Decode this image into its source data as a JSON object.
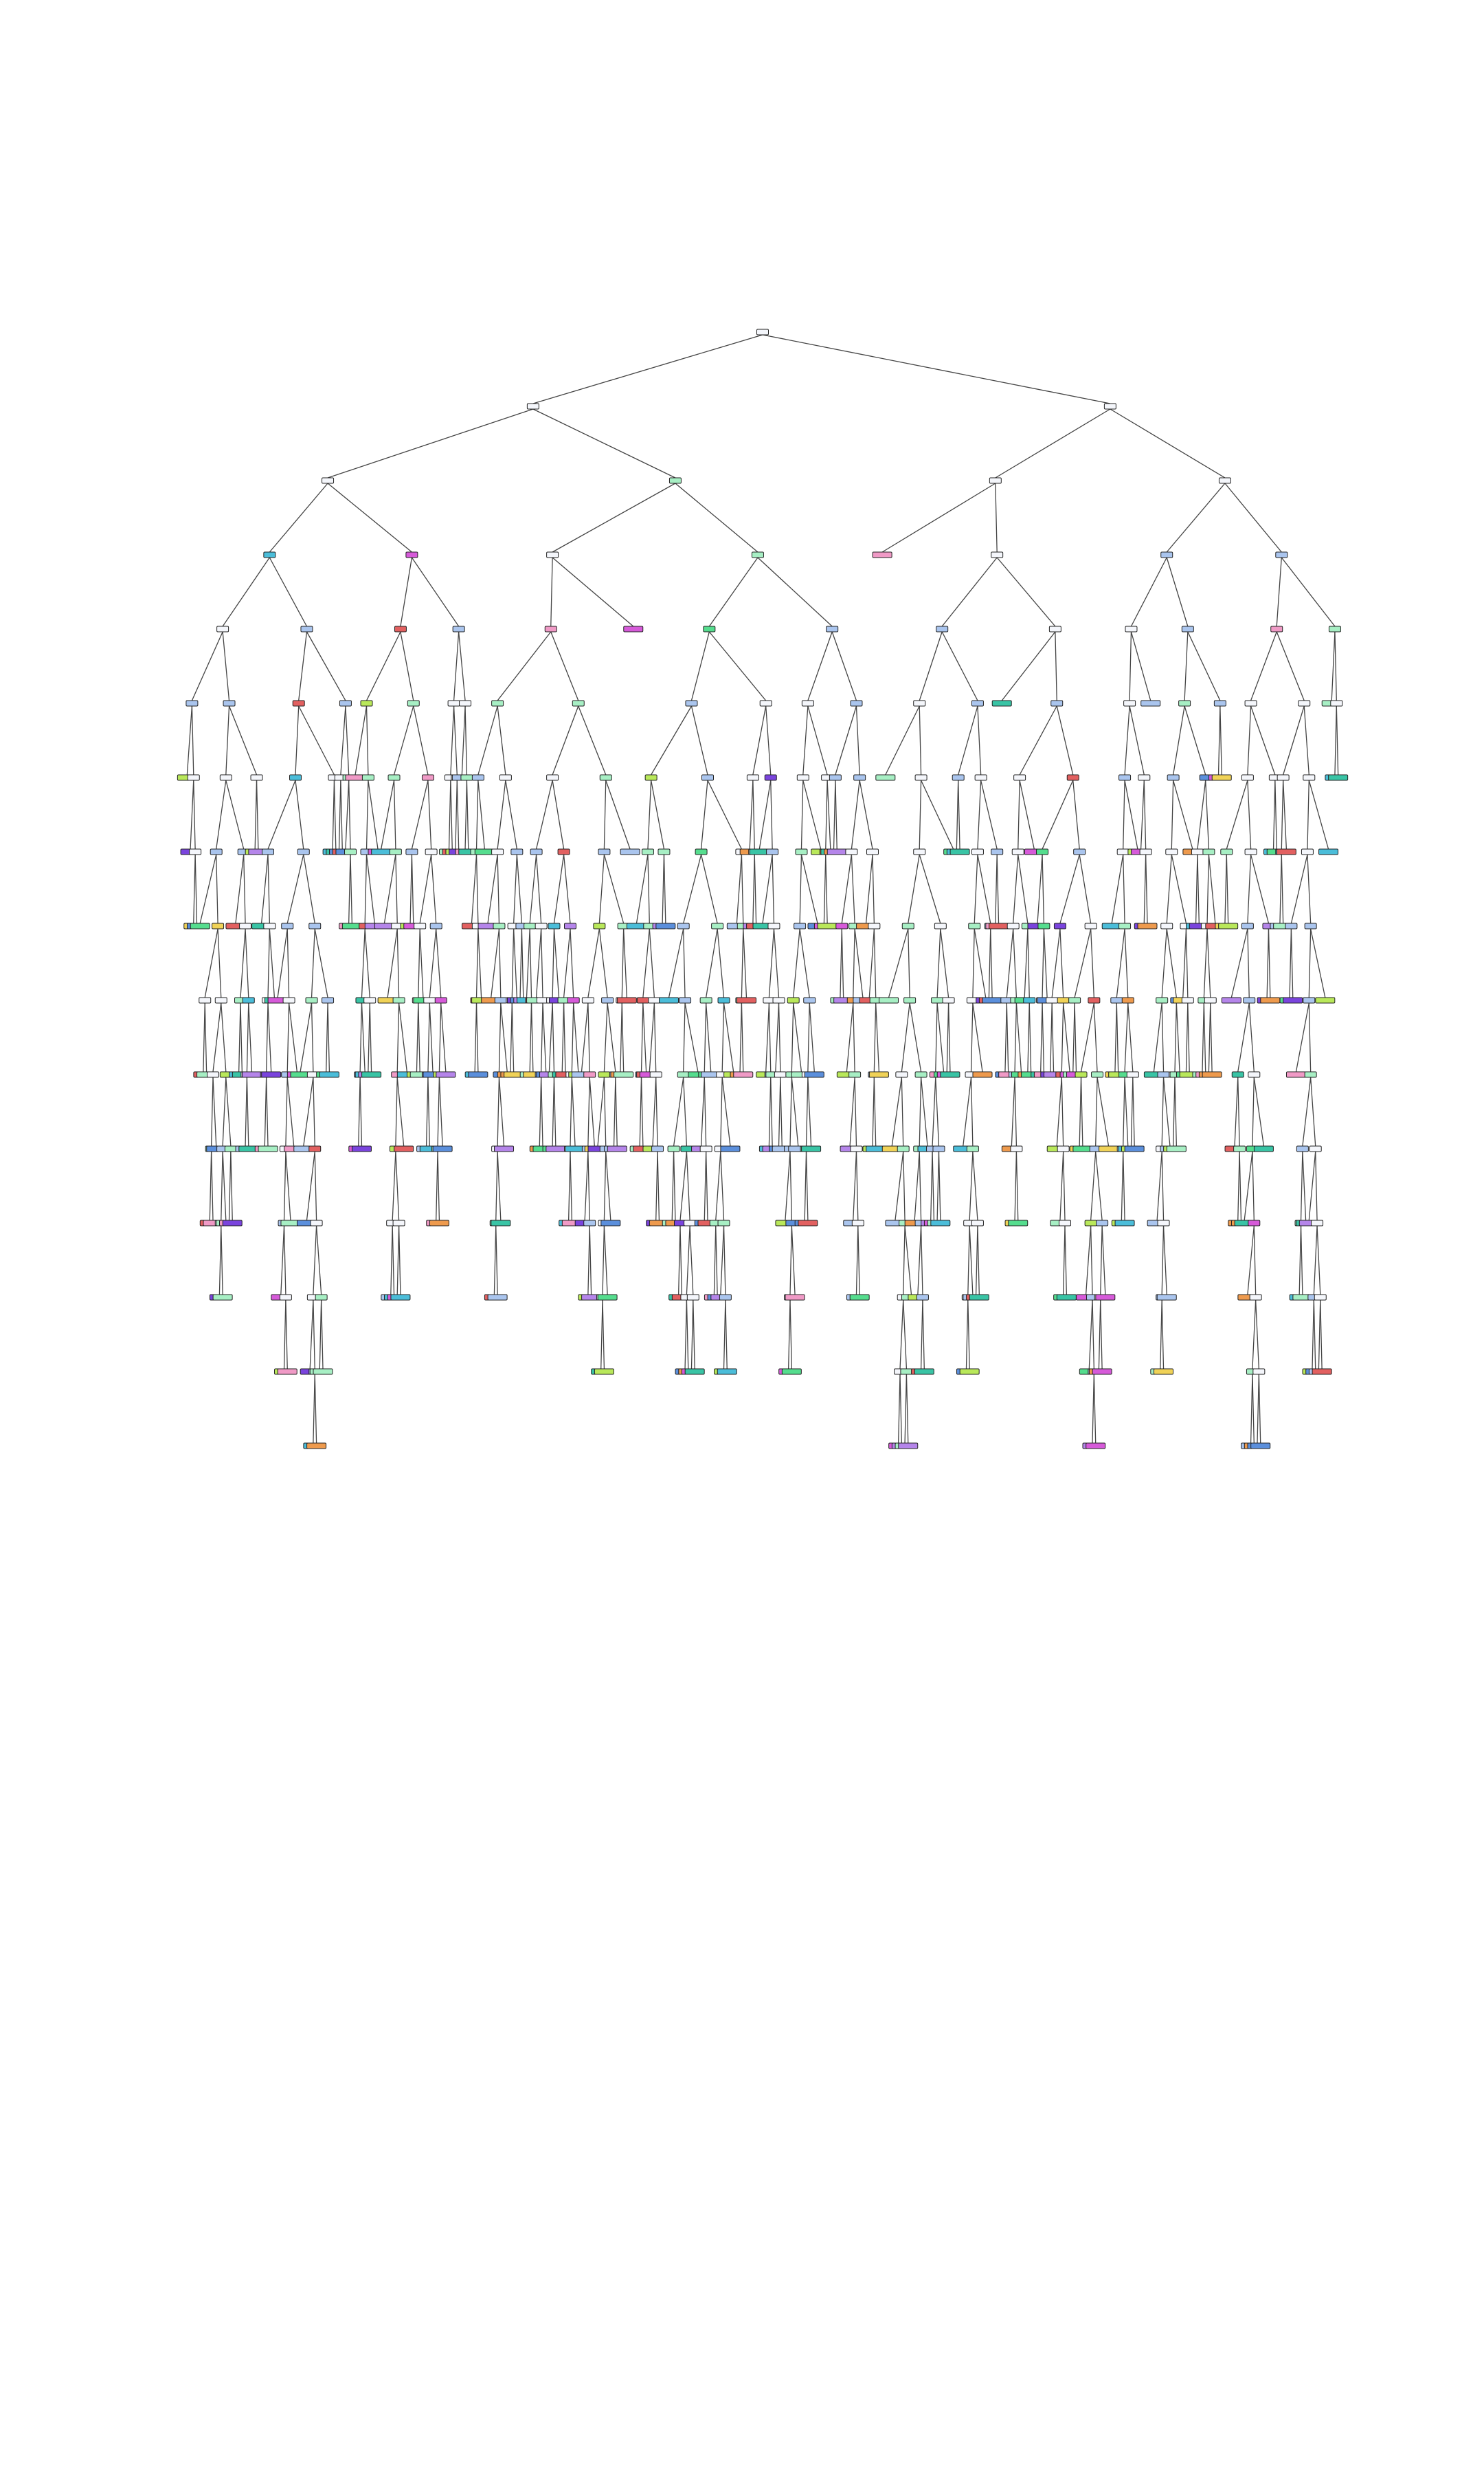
{
  "diagram": {
    "kind": "decision-tree",
    "palette": {
      "white": "#f4f6fb",
      "green": "#55dd8e",
      "light-green": "#a7efc4",
      "teal": "#39c4a5",
      "cyan": "#4bbdd9",
      "blue": "#5b8fdc",
      "light-blue": "#aac5ee",
      "purple": "#7a44dd",
      "violet": "#b585ea",
      "magenta": "#d65ad9",
      "lime": "#b9e85a",
      "yellow": "#f0d257",
      "orange": "#ee9a4d",
      "red": "#e26060",
      "pink": "#f09ac6"
    }
  }
}
